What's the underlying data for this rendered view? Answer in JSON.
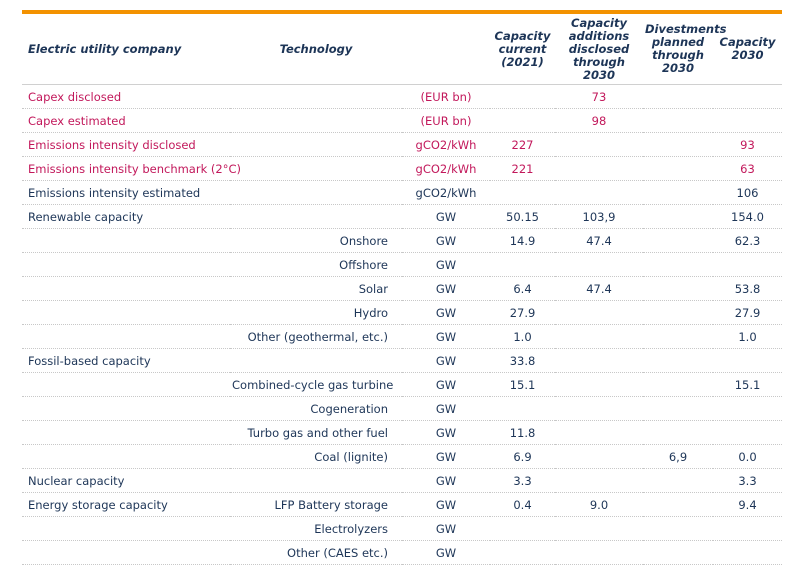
{
  "table": {
    "columns": [
      "Electric utility company",
      "Technology",
      null,
      "Capacity current (2021)",
      "Capacity additions disclosed through 2030",
      "Divestments planned through 2030",
      "Capacity 2030"
    ],
    "rows": [
      [
        "Capex disclosed",
        null,
        "(EUR bn)",
        null,
        "73",
        null,
        null
      ],
      [
        "Capex estimated",
        null,
        "(EUR bn)",
        null,
        "98",
        null,
        null
      ],
      [
        "Emissions intensity disclosed",
        null,
        "gCO2/kWh",
        "227",
        null,
        null,
        "93"
      ],
      [
        "Emissions intensity benchmark (2°C)",
        null,
        "gCO2/kWh",
        "221",
        null,
        null,
        "63"
      ],
      [
        "Emissions intensity estimated",
        null,
        "gCO2/kWh",
        null,
        null,
        null,
        "106"
      ],
      [
        "Renewable capacity",
        null,
        "GW",
        "50.15",
        "103,9",
        null,
        "154.0"
      ],
      [
        null,
        "Onshore",
        "GW",
        "14.9",
        "47.4",
        null,
        "62.3"
      ],
      [
        null,
        "Offshore",
        "GW",
        null,
        null,
        null,
        null
      ],
      [
        null,
        "Solar",
        "GW",
        "6.4",
        "47.4",
        null,
        "53.8"
      ],
      [
        null,
        "Hydro",
        "GW",
        "27.9",
        null,
        null,
        "27.9"
      ],
      [
        null,
        "Other (geothermal, etc.)",
        "GW",
        "1.0",
        null,
        null,
        "1.0"
      ],
      [
        "Fossil-based capacity",
        null,
        "GW",
        "33.8",
        null,
        null,
        null
      ],
      [
        null,
        "Combined-cycle gas turbine",
        "GW",
        "15.1",
        null,
        null,
        "15.1"
      ],
      [
        null,
        "Cogeneration",
        "GW",
        null,
        null,
        null,
        null
      ],
      [
        null,
        "Turbo gas and other fuel",
        "GW",
        "11.8",
        null,
        null,
        null
      ],
      [
        null,
        "Coal (lignite)",
        "GW",
        "6.9",
        null,
        "6,9",
        "0.0"
      ],
      [
        "Nuclear capacity",
        null,
        "GW",
        "3.3",
        null,
        null,
        "3.3"
      ],
      [
        "Energy storage capacity",
        "LFP Battery storage",
        "GW",
        "0.4",
        "9.0",
        null,
        "9.4"
      ],
      [
        null,
        "Electrolyzers",
        "GW",
        null,
        null,
        null,
        null
      ],
      [
        null,
        "Other (CAES etc.)",
        "GW",
        null,
        null,
        null,
        null
      ]
    ]
  }
}
